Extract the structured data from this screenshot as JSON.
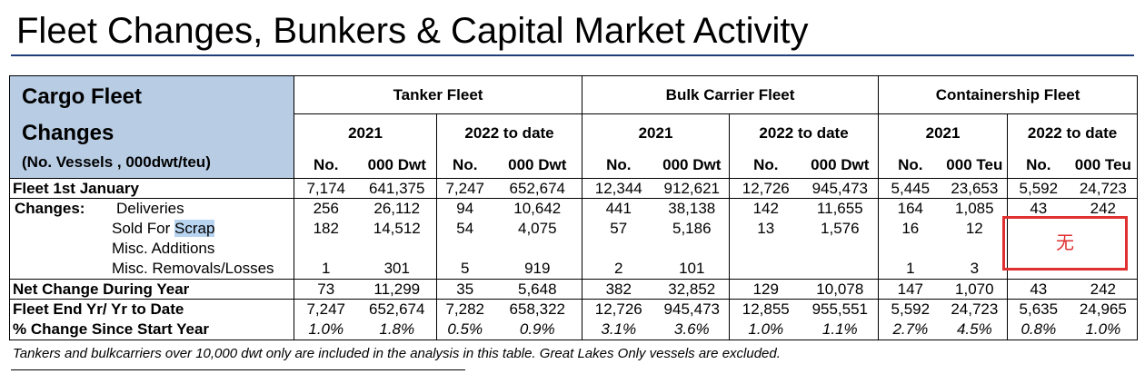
{
  "title": "Fleet Changes, Bunkers & Capital Market Activity",
  "header": {
    "cargo_line1": "Cargo Fleet",
    "cargo_line2": "Changes",
    "cargo_line3": "(No. Vessels , 000dwt/teu)",
    "groups": [
      "Tanker Fleet",
      "Bulk Carrier Fleet",
      "Containership Fleet"
    ],
    "years": [
      "2021",
      "2022 to date",
      "2021",
      "2022 to date",
      "2021",
      "2022 to date"
    ],
    "subs": [
      "No.",
      "000 Dwt",
      "No.",
      "000 Dwt",
      "No.",
      "000 Dwt",
      "No.",
      "000 Dwt",
      "No.",
      "000 Teu",
      "No.",
      "000 Teu"
    ]
  },
  "rows": {
    "fleet_start": {
      "label": "Fleet 1st January",
      "values": [
        "7,174",
        "641,375",
        "7,247",
        "652,674",
        "12,344",
        "912,621",
        "12,726",
        "945,473",
        "5,445",
        "23,653",
        "5,592",
        "24,723"
      ]
    },
    "changes_label": "Changes:",
    "deliveries": {
      "label": "Deliveries",
      "values": [
        "256",
        "26,112",
        "94",
        "10,642",
        "441",
        "38,138",
        "142",
        "11,655",
        "164",
        "1,085",
        "43",
        "242"
      ]
    },
    "scrap": {
      "label_pre": "Sold For ",
      "label_hl": "Scrap",
      "values": [
        "182",
        "14,512",
        "54",
        "4,075",
        "57",
        "5,186",
        "13",
        "1,576",
        "16",
        "12",
        "",
        ""
      ]
    },
    "misc_add": {
      "label": "Misc. Additions",
      "values": [
        "",
        "",
        "",
        "",
        "",
        "",
        "",
        "",
        "",
        "",
        "",
        ""
      ]
    },
    "misc_rem": {
      "label": "Misc. Removals/Losses",
      "values": [
        "1",
        "301",
        "5",
        "919",
        "2",
        "101",
        "",
        "",
        "1",
        "3",
        "",
        ""
      ]
    },
    "net_change": {
      "label": "Net Change During Year",
      "values": [
        "73",
        "11,299",
        "35",
        "5,648",
        "382",
        "32,852",
        "129",
        "10,078",
        "147",
        "1,070",
        "43",
        "242"
      ]
    },
    "fleet_end": {
      "label": "Fleet End Yr/ Yr to Date",
      "values": [
        "7,247",
        "652,674",
        "7,282",
        "658,322",
        "12,726",
        "945,473",
        "12,855",
        "955,551",
        "5,592",
        "24,723",
        "5,635",
        "24,965"
      ]
    },
    "pct_change": {
      "label": "% Change Since Start Year",
      "values": [
        "1.0%",
        "1.8%",
        "0.5%",
        "0.9%",
        "3.1%",
        "3.6%",
        "1.0%",
        "1.1%",
        "2.7%",
        "4.5%",
        "0.8%",
        "1.0%"
      ]
    }
  },
  "stamp_text": "无",
  "footnote": "Tankers and bulkcarriers over 10,000 dwt only are included in the analysis in this table. Great Lakes Only vessels are excluded."
}
